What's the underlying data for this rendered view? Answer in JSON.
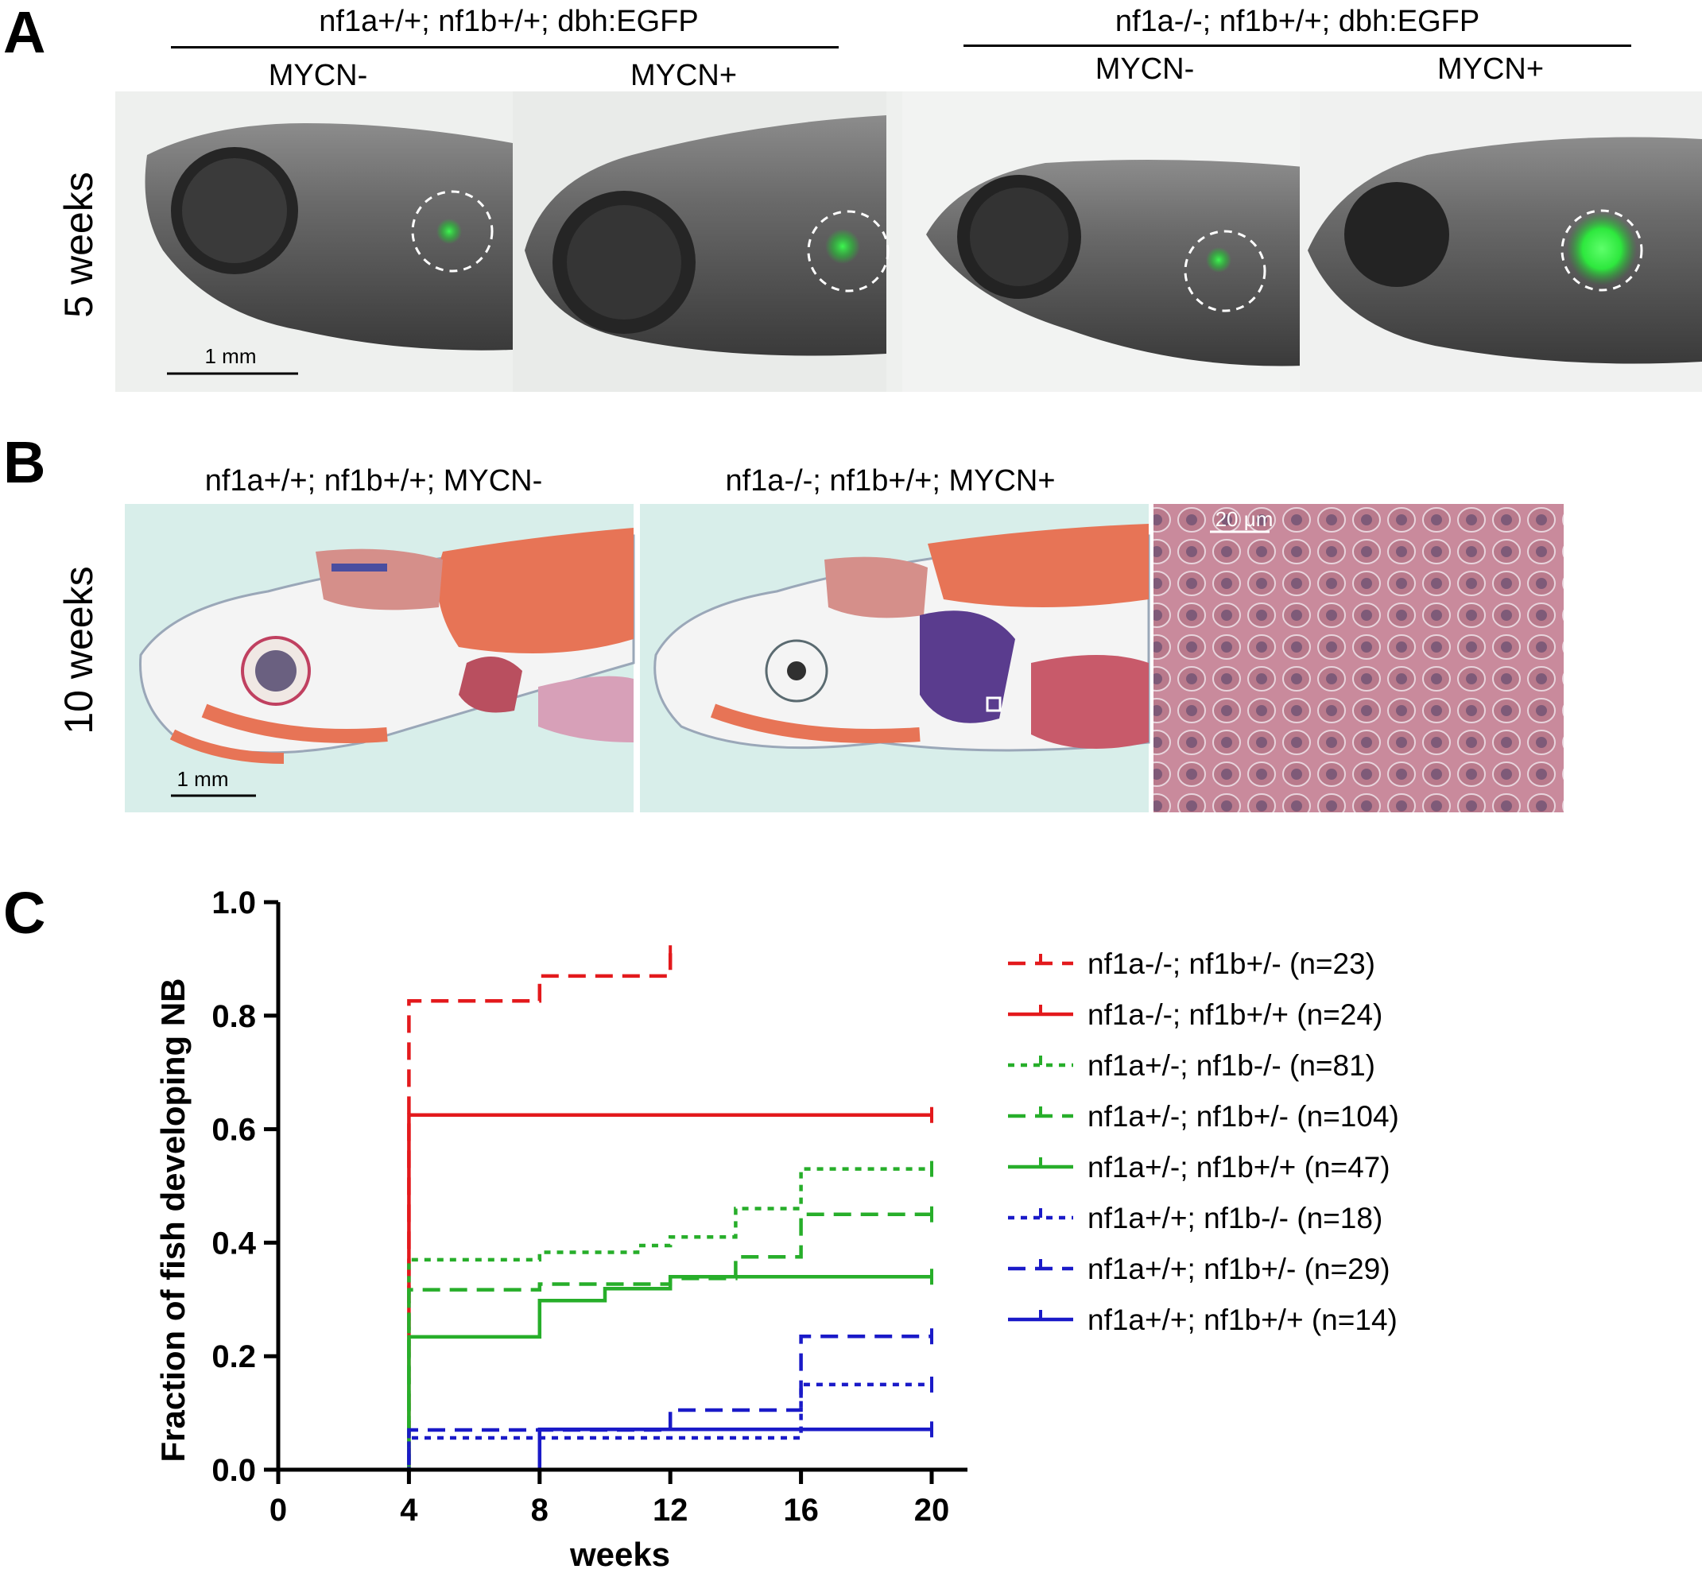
{
  "panelA": {
    "letter": "A",
    "group_left": "nf1a+/+; nf1b+/+; dbh:EGFP",
    "group_right": "nf1a-/-; nf1b+/+; dbh:EGFP",
    "sub_labels": [
      "MYCN-",
      "MYCN+",
      "MYCN-",
      "MYCN+"
    ],
    "row_label": "5 weeks",
    "scale_bar": "1 mm"
  },
  "panelB": {
    "letter": "B",
    "label_left": "nf1a+/+; nf1b+/+; MYCN-",
    "label_mid": "nf1a-/-; nf1b+/+; MYCN+",
    "row_label": "10 weeks",
    "scale_bar": "1 mm",
    "scale_bar_zoom": "20 μm"
  },
  "panelC": {
    "letter": "C",
    "colors": {
      "red": "#e3191c",
      "green": "#27ae2a",
      "blue": "#1a1ac8"
    }
  },
  "chart_data": {
    "type": "line",
    "xlabel": "weeks",
    "ylabel": "Fraction of fish developing NB",
    "xlim": [
      0,
      20
    ],
    "ylim": [
      0,
      1.0
    ],
    "xticks": [
      0,
      4,
      8,
      12,
      16,
      20
    ],
    "yticks": [
      0.0,
      0.2,
      0.4,
      0.6,
      0.8,
      1.0
    ],
    "x_tick_labels": [
      "0",
      "4",
      "8",
      "12",
      "16",
      "20"
    ],
    "y_tick_labels": [
      "0.0",
      "0.2",
      "0.4",
      "0.6",
      "0.8",
      "1.0"
    ],
    "legend_position": "right",
    "series": [
      {
        "name": "nf1a-/-; nf1b+/- (n=23)",
        "color": "#e3191c",
        "dash": "dashed",
        "steps": [
          [
            0,
            0
          ],
          [
            4,
            0.826
          ],
          [
            8,
            0.87
          ],
          [
            12,
            0.91
          ]
        ]
      },
      {
        "name": "nf1a-/-; nf1b+/+ (n=24)",
        "color": "#e3191c",
        "dash": "solid",
        "steps": [
          [
            0,
            0
          ],
          [
            4,
            0.625
          ],
          [
            20,
            0.625
          ]
        ]
      },
      {
        "name": "nf1a+/-; nf1b-/- (n=81)",
        "color": "#27ae2a",
        "dash": "dotted",
        "steps": [
          [
            0,
            0
          ],
          [
            4,
            0.37
          ],
          [
            8,
            0.383
          ],
          [
            11,
            0.395
          ],
          [
            12,
            0.41
          ],
          [
            14,
            0.46
          ],
          [
            16,
            0.53
          ],
          [
            20,
            0.53
          ]
        ]
      },
      {
        "name": "nf1a+/-; nf1b+/- (n=104)",
        "color": "#27ae2a",
        "dash": "dashed",
        "steps": [
          [
            0,
            0
          ],
          [
            4,
            0.317
          ],
          [
            8,
            0.327
          ],
          [
            12,
            0.337
          ],
          [
            14,
            0.375
          ],
          [
            16,
            0.45
          ],
          [
            20,
            0.45
          ]
        ]
      },
      {
        "name": "nf1a+/-; nf1b+/+ (n=47)",
        "color": "#27ae2a",
        "dash": "solid",
        "steps": [
          [
            0,
            0
          ],
          [
            4,
            0.234
          ],
          [
            8,
            0.298
          ],
          [
            10,
            0.319
          ],
          [
            12,
            0.34
          ],
          [
            20,
            0.34
          ]
        ]
      },
      {
        "name": "nf1a+/+; nf1b-/- (n=18)",
        "color": "#1a1ac8",
        "dash": "dotted",
        "steps": [
          [
            0,
            0
          ],
          [
            4,
            0.056
          ],
          [
            16,
            0.15
          ],
          [
            20,
            0.15
          ]
        ]
      },
      {
        "name": "nf1a+/+; nf1b+/- (n=29)",
        "color": "#1a1ac8",
        "dash": "dashed",
        "steps": [
          [
            0,
            0
          ],
          [
            4,
            0.07
          ],
          [
            12,
            0.105
          ],
          [
            16,
            0.235
          ],
          [
            20,
            0.235
          ]
        ]
      },
      {
        "name": "nf1a+/+; nf1b+/+ (n=14)",
        "color": "#1a1ac8",
        "dash": "solid",
        "steps": [
          [
            0,
            0
          ],
          [
            8,
            0.071
          ],
          [
            20,
            0.071
          ]
        ]
      }
    ]
  }
}
